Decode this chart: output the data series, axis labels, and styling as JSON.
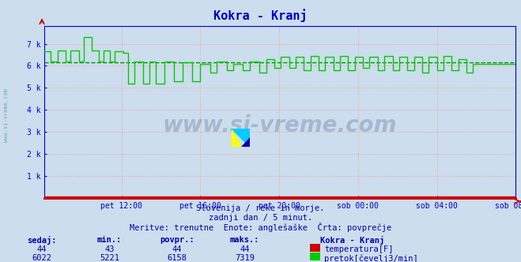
{
  "title": "Kokra - Kranj",
  "title_color": "#0000cc",
  "bg_color": "#ccdded",
  "plot_bg_color": "#ccdded",
  "axis_color": "#0000cc",
  "grid_color": "#ff9999",
  "grid_style": ":",
  "x_labels": [
    "pet 12:00",
    "pet 16:00",
    "pet 20:00",
    "sob 00:00",
    "sob 04:00",
    "sob 08:00"
  ],
  "y_ticks": [
    0,
    1000,
    2000,
    3000,
    4000,
    5000,
    6000,
    7000
  ],
  "y_tick_labels": [
    "",
    "1 k",
    "2 k",
    "3 k",
    "4 k",
    "5 k",
    "6 k",
    "7 k"
  ],
  "ylim": [
    0,
    7800
  ],
  "avg_line_value": 6158,
  "avg_line_color": "#009900",
  "avg_line_style": "--",
  "flow_line_color": "#00cc00",
  "temp_line_color": "#cc0000",
  "watermark_text": "www.si-vreme.com",
  "watermark_color": "#1a3a6a",
  "subtitle1": "Slovenija / reke in morje.",
  "subtitle2": "zadnji dan / 5 minut.",
  "subtitle3": "Meritve: trenutne  Enote: anglešaške  Črta: povprečje",
  "subtitle_color": "#0000aa",
  "legend_title": "Kokra - Kranj",
  "legend_labels": [
    "temperatura[F]",
    "pretok[čevelj3/min]"
  ],
  "legend_colors": [
    "#cc0000",
    "#00cc00"
  ],
  "table_headers": [
    "sedaj:",
    "min.:",
    "povpr.:",
    "maks.:"
  ],
  "table_row1": [
    44,
    43,
    44,
    44
  ],
  "table_row2": [
    6022,
    5221,
    6158,
    7319
  ],
  "table_color": "#0000aa",
  "left_label": "www.si-vreme.com",
  "left_label_color": "#4477aa"
}
